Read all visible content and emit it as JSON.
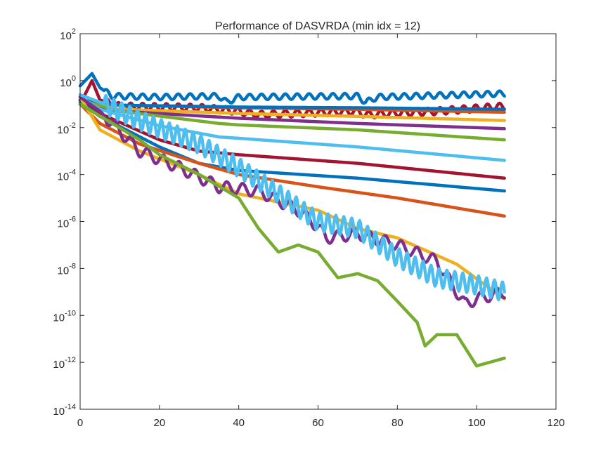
{
  "chart_data": {
    "type": "line",
    "title": "Performance of DASVRDA (min idx = 12)",
    "xlabel": "",
    "ylabel": "",
    "xlim": [
      0,
      120
    ],
    "ylim": [
      1e-14,
      100
    ],
    "yscale": "log",
    "grid": false,
    "legend": "none",
    "x_ticks": [
      {
        "value": 0,
        "label": "0"
      },
      {
        "value": 20,
        "label": "20"
      },
      {
        "value": 40,
        "label": "40"
      },
      {
        "value": 60,
        "label": "60"
      },
      {
        "value": 80,
        "label": "80"
      },
      {
        "value": 100,
        "label": "100"
      },
      {
        "value": 120,
        "label": "120"
      }
    ],
    "y_ticks": [
      {
        "value": 100.0,
        "base": "10",
        "exp": "2"
      },
      {
        "value": 1.0,
        "base": "10",
        "exp": "0"
      },
      {
        "value": 0.01,
        "base": "10",
        "exp": "-2"
      },
      {
        "value": 0.0001,
        "base": "10",
        "exp": "-4"
      },
      {
        "value": 1e-06,
        "base": "10",
        "exp": "-6"
      },
      {
        "value": 1e-08,
        "base": "10",
        "exp": "-8"
      },
      {
        "value": 1e-10,
        "base": "10",
        "exp": "-10"
      },
      {
        "value": 1e-12,
        "base": "10",
        "exp": "-12"
      },
      {
        "value": 1e-14,
        "base": "10",
        "exp": "-14"
      }
    ],
    "series": [
      {
        "color": "#0072BD",
        "oscillate": 0.12,
        "period": 3,
        "points": [
          [
            0,
            0.6
          ],
          [
            3,
            2
          ],
          [
            5,
            0.5
          ],
          [
            8,
            0.22
          ],
          [
            20,
            0.2
          ],
          [
            35,
            0.22
          ],
          [
            37,
            0.12
          ],
          [
            40,
            0.2
          ],
          [
            70,
            0.22
          ],
          [
            72,
            0.12
          ],
          [
            75,
            0.2
          ],
          [
            107,
            0.28
          ]
        ]
      },
      {
        "color": "#A2142F",
        "oscillate": 0.15,
        "period": 3,
        "points": [
          [
            0,
            0.1
          ],
          [
            3,
            1
          ],
          [
            5,
            0.15
          ],
          [
            10,
            0.08
          ],
          [
            30,
            0.07
          ],
          [
            40,
            0.05
          ],
          [
            45,
            0.035
          ],
          [
            70,
            0.05
          ],
          [
            72,
            0.035
          ],
          [
            90,
            0.05
          ],
          [
            107,
            0.08
          ]
        ]
      },
      {
        "color": "#D95319",
        "oscillate": 0,
        "points": [
          [
            0,
            0.15
          ],
          [
            10,
            0.09
          ],
          [
            40,
            0.07
          ],
          [
            70,
            0.06
          ],
          [
            107,
            0.045
          ]
        ]
      },
      {
        "color": "#0072BD",
        "oscillate": 0,
        "points": [
          [
            0,
            0.15
          ],
          [
            10,
            0.09
          ],
          [
            40,
            0.075
          ],
          [
            70,
            0.07
          ],
          [
            107,
            0.06
          ]
        ]
      },
      {
        "color": "#EDB120",
        "oscillate": 0,
        "points": [
          [
            0,
            0.12
          ],
          [
            10,
            0.06
          ],
          [
            40,
            0.04
          ],
          [
            70,
            0.03
          ],
          [
            107,
            0.02
          ]
        ]
      },
      {
        "color": "#7E2F8E",
        "oscillate": 0,
        "points": [
          [
            0,
            0.1
          ],
          [
            10,
            0.05
          ],
          [
            40,
            0.025
          ],
          [
            70,
            0.015
          ],
          [
            107,
            0.009
          ]
        ]
      },
      {
        "color": "#77AC30",
        "oscillate": 0,
        "points": [
          [
            0,
            0.15
          ],
          [
            10,
            0.05
          ],
          [
            35,
            0.015
          ],
          [
            40,
            0.013
          ],
          [
            70,
            0.008
          ],
          [
            107,
            0.003
          ]
        ]
      },
      {
        "color": "#4DBEEE",
        "oscillate": 0,
        "points": [
          [
            0,
            0.2
          ],
          [
            5,
            0.06
          ],
          [
            20,
            0.012
          ],
          [
            35,
            0.004
          ],
          [
            40,
            0.0035
          ],
          [
            70,
            0.0015
          ],
          [
            107,
            0.0004
          ]
        ]
      },
      {
        "color": "#A2142F",
        "oscillate": 0,
        "points": [
          [
            0,
            0.15
          ],
          [
            5,
            0.04
          ],
          [
            20,
            0.003
          ],
          [
            30,
            0.001
          ],
          [
            40,
            0.0007
          ],
          [
            70,
            0.0003
          ],
          [
            107,
            7e-05
          ]
        ]
      },
      {
        "color": "#0072BD",
        "oscillate": 0,
        "points": [
          [
            0,
            0.12
          ],
          [
            5,
            0.03
          ],
          [
            20,
            0.0015
          ],
          [
            30,
            0.0003
          ],
          [
            40,
            0.00015
          ],
          [
            70,
            7e-05
          ],
          [
            107,
            2e-05
          ]
        ]
      },
      {
        "color": "#D95319",
        "oscillate": 0,
        "points": [
          [
            0,
            0.1
          ],
          [
            5,
            0.015
          ],
          [
            15,
            0.002
          ],
          [
            30,
            0.0003
          ],
          [
            40,
            0.0001
          ],
          [
            60,
            3e-05
          ],
          [
            80,
            1e-05
          ],
          [
            107,
            1.7e-06
          ]
        ]
      },
      {
        "color": "#EDB120",
        "oscillate": 0,
        "points": [
          [
            0,
            0.2
          ],
          [
            5,
            0.008
          ],
          [
            15,
            0.001
          ],
          [
            30,
            0.0001
          ],
          [
            40,
            1.5e-05
          ],
          [
            60,
            3e-06
          ],
          [
            70,
            5e-07
          ],
          [
            80,
            2e-07
          ],
          [
            95,
            1.5e-08
          ],
          [
            107,
            5e-10
          ]
        ]
      },
      {
        "color": "#7E2F8E",
        "oscillate": 0.25,
        "period": 4,
        "points": [
          [
            0,
            0.2
          ],
          [
            5,
            0.05
          ],
          [
            15,
            0.001
          ],
          [
            25,
            0.0002
          ],
          [
            35,
            3e-05
          ],
          [
            45,
            2e-05
          ],
          [
            55,
            3e-06
          ],
          [
            60,
            6e-07
          ],
          [
            62,
            2e-07
          ],
          [
            70,
            3e-07
          ],
          [
            80,
            1e-07
          ],
          [
            90,
            2e-08
          ],
          [
            97,
            3e-10
          ],
          [
            100,
            5e-10
          ],
          [
            107,
            1e-09
          ]
        ]
      },
      {
        "color": "#4DBEEE",
        "oscillate": 0.4,
        "period": 2,
        "points": [
          [
            0,
            0.25
          ],
          [
            5,
            0.12
          ],
          [
            15,
            0.02
          ],
          [
            30,
            0.002
          ],
          [
            40,
            0.0002
          ],
          [
            50,
            1.5e-05
          ],
          [
            60,
            1e-06
          ],
          [
            70,
            5e-07
          ],
          [
            80,
            3e-08
          ],
          [
            90,
            4e-09
          ],
          [
            100,
            2e-09
          ],
          [
            107,
            1e-09
          ]
        ]
      },
      {
        "color": "#77AC30",
        "oscillate": 0,
        "points": [
          [
            0,
            0.1
          ],
          [
            15,
            0.003
          ],
          [
            20,
            0.0007
          ],
          [
            30,
            0.0001
          ],
          [
            40,
            1e-05
          ],
          [
            45,
            5e-07
          ],
          [
            50,
            5e-08
          ],
          [
            55,
            1e-07
          ],
          [
            60,
            5e-08
          ],
          [
            65,
            4e-09
          ],
          [
            70,
            6e-09
          ],
          [
            75,
            3e-09
          ],
          [
            80,
            4e-10
          ],
          [
            85,
            5e-11
          ],
          [
            87,
            5e-12
          ],
          [
            90,
            1.5e-11
          ],
          [
            95,
            1.5e-11
          ],
          [
            100,
            7e-13
          ],
          [
            107,
            1.5e-12
          ]
        ]
      }
    ]
  }
}
